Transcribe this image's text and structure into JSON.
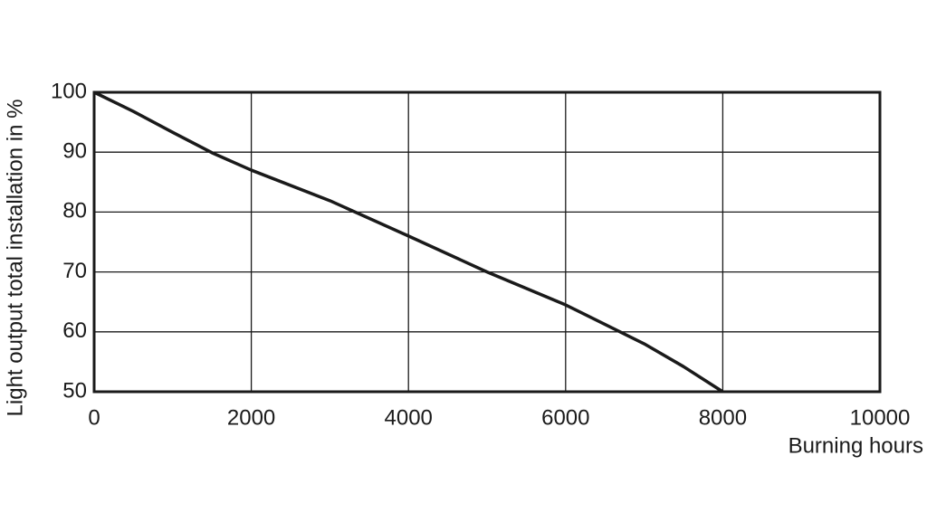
{
  "chart_data": {
    "type": "line",
    "x_label": "Burning hours",
    "y_label": "Light output total installation in %",
    "x": [
      0,
      500,
      1000,
      1500,
      2000,
      3000,
      4000,
      5000,
      6000,
      7000,
      7500,
      8000
    ],
    "series": [
      {
        "name": "Light output",
        "color": "#1a1a1a",
        "values": [
          100,
          96.8,
          93.3,
          89.9,
          87,
          81.9,
          76,
          70,
          64.5,
          58,
          54.2,
          50
        ]
      }
    ],
    "xlim": [
      0,
      10000
    ],
    "xticks": [
      0,
      2000,
      4000,
      6000,
      8000,
      10000
    ],
    "ylim": [
      50,
      100
    ],
    "yticks": [
      50,
      60,
      70,
      80,
      90,
      100
    ],
    "grid": true
  }
}
